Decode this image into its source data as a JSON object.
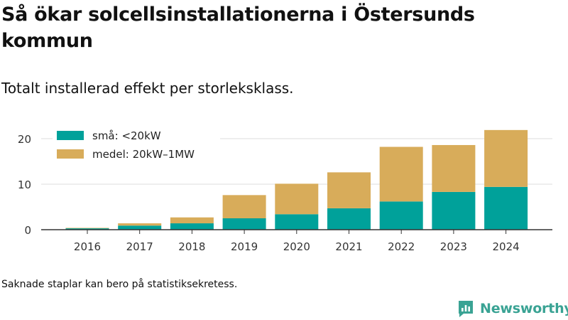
{
  "title": "Så ökar solcellsinstallationerna i Östersunds kommun",
  "subtitle": "Totalt installerad effekt per storleksklass.",
  "note": "Saknade staplar kan bero på statistiksekretess.",
  "brand": {
    "name": "Newsworthy",
    "icon": "newsworthy-logo-icon",
    "color": "#3aa394"
  },
  "chart_data": {
    "type": "bar",
    "stacked": true,
    "categories": [
      "2016",
      "2017",
      "2018",
      "2019",
      "2020",
      "2021",
      "2022",
      "2023",
      "2024"
    ],
    "series": [
      {
        "name": "små: <20kW",
        "color": "#00a19a",
        "values": [
          0.3,
          0.9,
          1.4,
          2.5,
          3.4,
          4.7,
          6.2,
          8.3,
          9.4
        ]
      },
      {
        "name": "medel: 20kW–1MW",
        "color": "#d8ac5a",
        "values": [
          0.1,
          0.5,
          1.3,
          5.1,
          6.7,
          7.9,
          12.0,
          10.3,
          12.5
        ]
      }
    ],
    "yticks": [
      0,
      10,
      20
    ],
    "ylim": [
      0,
      23
    ],
    "grid": true,
    "legend": "top-left"
  }
}
